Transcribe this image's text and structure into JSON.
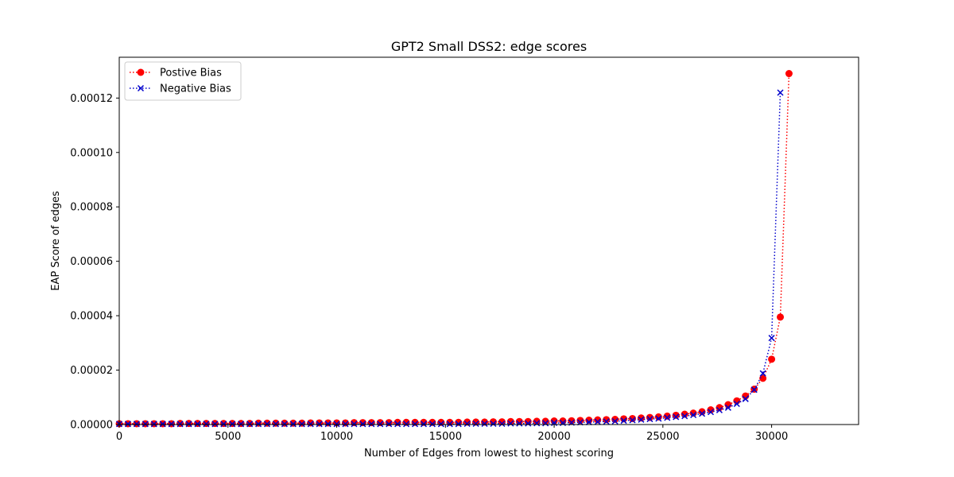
{
  "chart_data": {
    "type": "line",
    "title": "GPT2 Small DSS2: edge scores",
    "xlabel": "Number of Edges from lowest to highest scoring",
    "ylabel": "EAP Score of edges",
    "xlim": [
      0,
      34000
    ],
    "ylim": [
      0,
      0.000135
    ],
    "x_ticks": [
      0,
      5000,
      10000,
      15000,
      20000,
      25000,
      30000
    ],
    "x_tick_labels": [
      "0",
      "5000",
      "10000",
      "15000",
      "20000",
      "25000",
      "30000"
    ],
    "y_ticks": [
      0,
      2e-05,
      4e-05,
      6e-05,
      8e-05,
      0.0001,
      0.00012
    ],
    "y_tick_labels": [
      "0.00000",
      "0.00002",
      "0.00004",
      "0.00006",
      "0.00008",
      "0.00010",
      "0.00012"
    ],
    "grid": false,
    "legend_position": "top-left",
    "x_start": 0,
    "x_step": 400,
    "series": [
      {
        "name": "Postive Bias",
        "color": "#ff0000",
        "marker": "circle",
        "linestyle": "dotted",
        "values": [
          3e-07,
          3e-07,
          3e-07,
          3e-07,
          3e-07,
          3e-07,
          3e-07,
          4e-07,
          4e-07,
          4e-07,
          4e-07,
          4e-07,
          4e-07,
          4e-07,
          4e-07,
          4e-07,
          5e-07,
          5e-07,
          5e-07,
          5e-07,
          5e-07,
          5e-07,
          6e-07,
          6e-07,
          6e-07,
          6e-07,
          6e-07,
          7e-07,
          7e-07,
          7e-07,
          7e-07,
          7e-07,
          8e-07,
          8e-07,
          8e-07,
          8e-07,
          8e-07,
          8e-07,
          8e-07,
          8e-07,
          9e-07,
          9e-07,
          9e-07,
          1e-06,
          1e-06,
          1.1e-06,
          1.1e-06,
          1.1e-06,
          1.2e-06,
          1.2e-06,
          1.3e-06,
          1.3e-06,
          1.4e-06,
          1.5e-06,
          1.6e-06,
          1.7e-06,
          1.8e-06,
          1.9e-06,
          2.1e-06,
          2.2e-06,
          2.4e-06,
          2.6e-06,
          2.8e-06,
          3.1e-06,
          3.4e-06,
          3.8e-06,
          4.2e-06,
          4.7e-06,
          5.4e-06,
          6.2e-06,
          7.3e-06,
          8.7e-06,
          1.05e-05,
          1.3e-05,
          1.7e-05,
          2.4e-05,
          3.95e-05,
          0.000129
        ]
      },
      {
        "name": "Negative Bias",
        "color": "#0000cc",
        "marker": "x",
        "linestyle": "dotted",
        "values": [
          2e-07,
          2e-07,
          2e-07,
          2e-07,
          2e-07,
          2e-07,
          2e-07,
          2e-07,
          2e-07,
          2e-07,
          2e-07,
          2e-07,
          2e-07,
          2e-07,
          2e-07,
          2e-07,
          2e-07,
          2e-07,
          2e-07,
          2e-07,
          2e-07,
          2e-07,
          2e-07,
          2e-07,
          2e-07,
          2e-07,
          2e-07,
          2e-07,
          2e-07,
          2e-07,
          2e-07,
          2e-07,
          2e-07,
          2e-07,
          2e-07,
          2e-07,
          2e-07,
          2e-07,
          2e-07,
          2e-07,
          3e-07,
          3e-07,
          3e-07,
          3e-07,
          3e-07,
          4e-07,
          4e-07,
          4e-07,
          5e-07,
          5e-07,
          6e-07,
          6e-07,
          7e-07,
          8e-07,
          9e-07,
          1e-06,
          1.1e-06,
          1.2e-06,
          1.4e-06,
          1.6e-06,
          1.8e-06,
          2e-06,
          2.2e-06,
          2.5e-06,
          2.8e-06,
          3.1e-06,
          3.5e-06,
          4e-06,
          4.6e-06,
          5.3e-06,
          6.2e-06,
          7.6e-06,
          9.4e-06,
          1.28e-05,
          1.88e-05,
          3.18e-05,
          0.000122
        ]
      }
    ]
  }
}
